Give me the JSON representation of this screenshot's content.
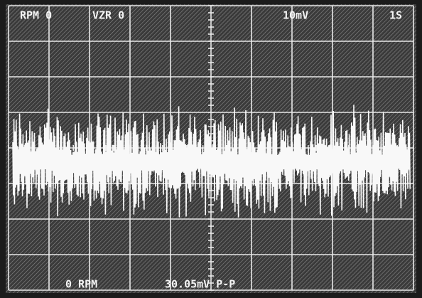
{
  "top_bar": {
    "channel": "RPM 0",
    "vzr": "VZR 0",
    "scale": "10mV",
    "time": "1S"
  },
  "bottom_bar": {
    "rpm": "0 RPM",
    "measurement": "30.05mV P-P"
  }
}
